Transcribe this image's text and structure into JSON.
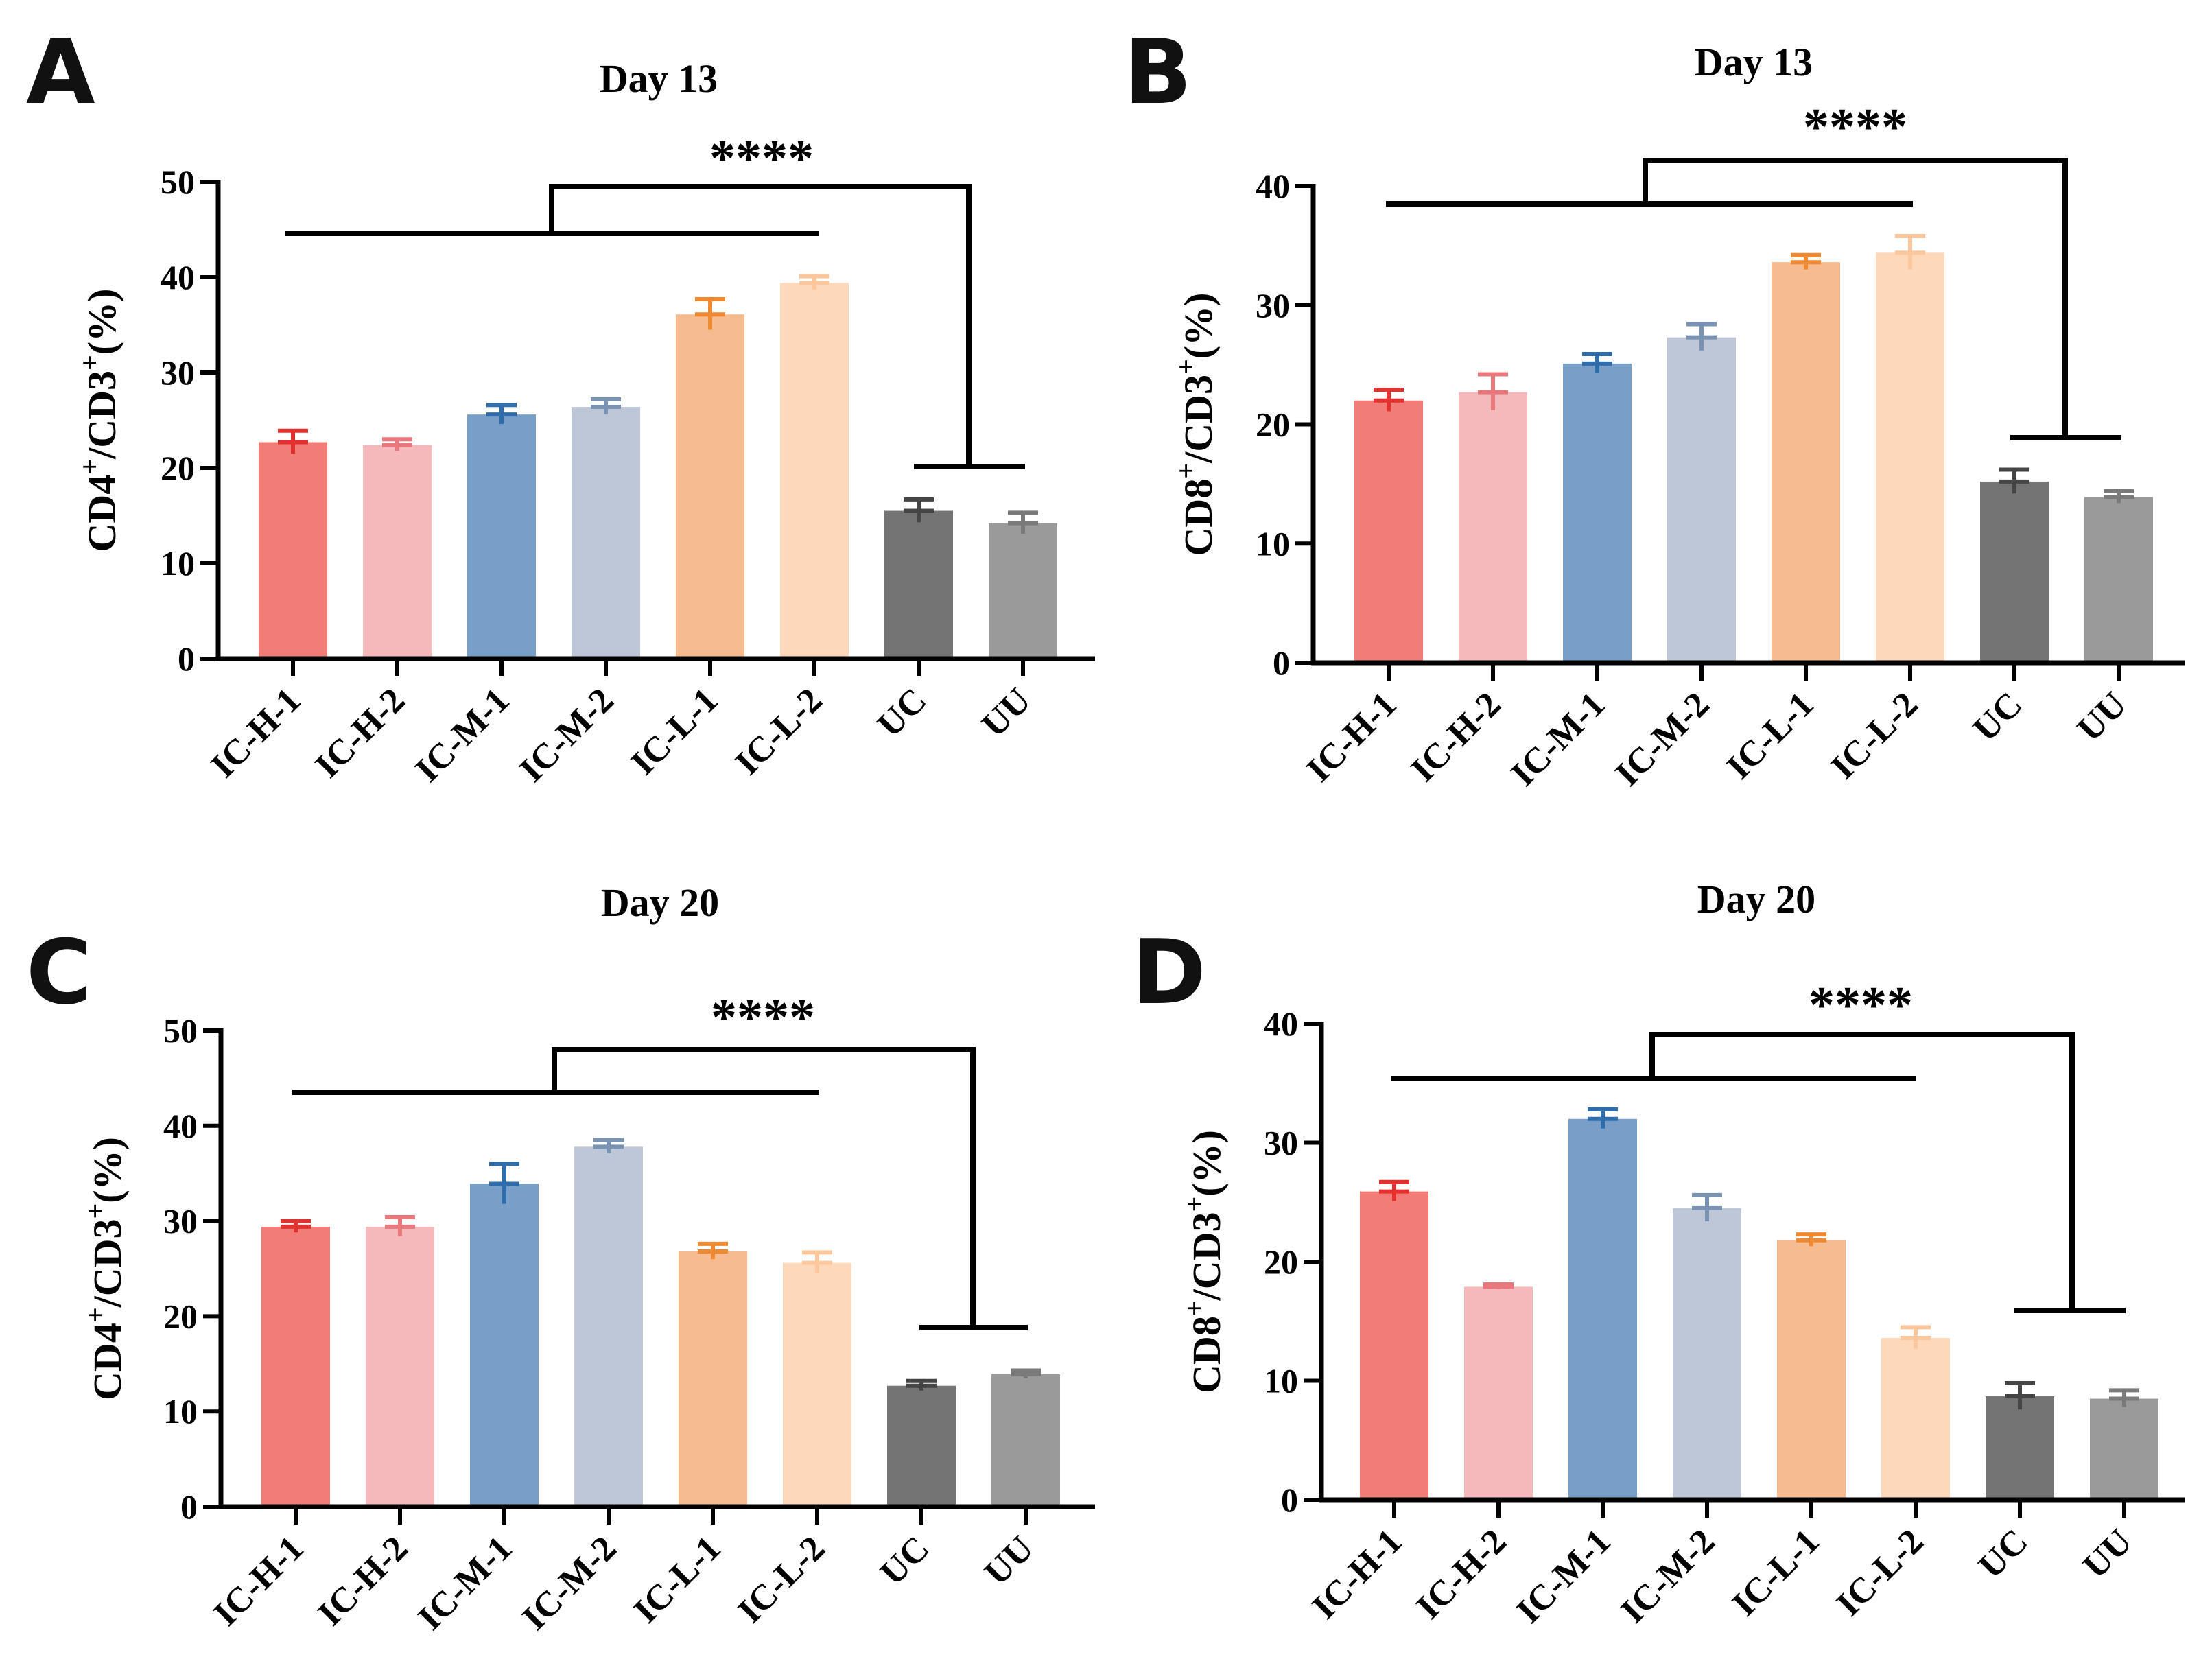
{
  "chart_data": [
    {
      "type": "bar",
      "panel": "A",
      "title": "Day 13",
      "ylabel": "CD4⁺/CD3⁺(%)",
      "ylabel_main": "CD4",
      "ylabel_sup1": "+",
      "ylabel_mid": "/CD3",
      "ylabel_sup2": "+",
      "ylabel_tail": "(%)",
      "ylim": [
        0,
        50
      ],
      "yticks": [
        0,
        10,
        20,
        30,
        40,
        50
      ],
      "categories": [
        "IC-H-1",
        "IC-H-2",
        "IC-M-1",
        "IC-M-2",
        "IC-L-1",
        "IC-L-2",
        "UC",
        "UU"
      ],
      "values": [
        22.7,
        22.4,
        25.6,
        26.4,
        36.1,
        39.4,
        15.5,
        14.2
      ],
      "errors": [
        1.2,
        0.6,
        1.0,
        0.8,
        1.6,
        0.7,
        1.2,
        1.1
      ],
      "significance": "****"
    },
    {
      "type": "bar",
      "panel": "B",
      "title": "Day 13",
      "ylabel": "CD8⁺/CD3⁺(%)",
      "ylabel_main": "CD8",
      "ylabel_sup1": "+",
      "ylabel_mid": "/CD3",
      "ylabel_sup2": "+",
      "ylabel_tail": "(%)",
      "ylim": [
        0,
        40
      ],
      "yticks": [
        0,
        10,
        20,
        30,
        40
      ],
      "categories": [
        "IC-H-1",
        "IC-H-2",
        "IC-M-1",
        "IC-M-2",
        "IC-L-1",
        "IC-L-2",
        "UC",
        "UU"
      ],
      "values": [
        22.0,
        22.7,
        25.1,
        27.3,
        33.6,
        34.4,
        15.2,
        13.9
      ],
      "errors": [
        0.9,
        1.5,
        0.8,
        1.1,
        0.6,
        1.4,
        1.0,
        0.5
      ],
      "significance": "****"
    },
    {
      "type": "bar",
      "panel": "C",
      "title": "Day 20",
      "ylabel": "CD4⁺/CD3⁺(%)",
      "ylabel_main": "CD4",
      "ylabel_sup1": "+",
      "ylabel_mid": "/CD3",
      "ylabel_sup2": "+",
      "ylabel_tail": "(%)",
      "ylim": [
        0,
        50
      ],
      "yticks": [
        0,
        10,
        20,
        30,
        40,
        50
      ],
      "categories": [
        "IC-H-1",
        "IC-H-2",
        "IC-M-1",
        "IC-M-2",
        "IC-L-1",
        "IC-L-2",
        "UC",
        "UU"
      ],
      "values": [
        29.4,
        29.4,
        33.9,
        37.8,
        26.8,
        25.6,
        12.7,
        13.9
      ],
      "errors": [
        0.6,
        1.0,
        2.1,
        0.7,
        0.8,
        1.1,
        0.5,
        0.4
      ],
      "significance": "****"
    },
    {
      "type": "bar",
      "panel": "D",
      "title": "Day 20",
      "ylabel": "CD8⁺/CD3⁺(%)",
      "ylabel_main": "CD8",
      "ylabel_sup1": "+",
      "ylabel_mid": "/CD3",
      "ylabel_sup2": "+",
      "ylabel_tail": "(%)",
      "ylim": [
        0,
        40
      ],
      "yticks": [
        0,
        10,
        20,
        30,
        40
      ],
      "categories": [
        "IC-H-1",
        "IC-H-2",
        "IC-M-1",
        "IC-M-2",
        "IC-L-1",
        "IC-L-2",
        "UC",
        "UU"
      ],
      "values": [
        25.9,
        17.9,
        32.0,
        24.5,
        21.8,
        13.6,
        8.7,
        8.5
      ],
      "errors": [
        0.8,
        0.2,
        0.8,
        1.1,
        0.5,
        0.9,
        1.1,
        0.7
      ],
      "significance": "****"
    }
  ],
  "colors": {
    "fill": [
      "#f27d77",
      "#f6b9bb",
      "#779fc7",
      "#bdc7d8",
      "#f6bb8f",
      "#fdd8bb",
      "#747474",
      "#9a9a9a"
    ],
    "error": [
      "#e3312f",
      "#e9787d",
      "#2f6dad",
      "#7a93b3",
      "#ef8a33",
      "#fdc79d",
      "#454545",
      "#7a7a7a"
    ]
  }
}
